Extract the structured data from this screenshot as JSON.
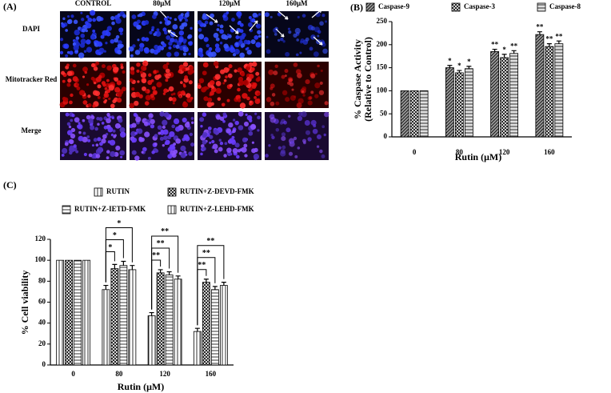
{
  "panel_a": {
    "panel_label": "(A)",
    "columns": [
      "CONTROL",
      "80μM",
      "120μM",
      "160μM"
    ],
    "rows": [
      "DAPI",
      "Mitotracker Red",
      "Merge"
    ]
  },
  "chart_data": [
    {
      "type": "bar",
      "panel_label": "(B)",
      "x_label": "Rutin (μM)",
      "y_label": [
        "% Caspase Activity",
        "(Relative to Control)"
      ],
      "categories": [
        "0",
        "80",
        "120",
        "160"
      ],
      "series": [
        {
          "name": "Caspase-9",
          "color": "#9a9a9a",
          "pattern": "diagonal",
          "values": [
            100,
            150,
            185,
            222
          ],
          "errors": [
            0,
            5,
            5,
            6
          ],
          "labels": [
            null,
            "*",
            "**",
            "**"
          ]
        },
        {
          "name": "Caspase-3",
          "color": "#ffffff",
          "pattern": "cross",
          "values": [
            100,
            139,
            172,
            196
          ],
          "errors": [
            0,
            5,
            7,
            6
          ],
          "labels": [
            null,
            "*",
            "*",
            "**"
          ]
        },
        {
          "name": "Caspase-8",
          "color": "#e0e0e0",
          "pattern": "horizontal",
          "values": [
            100,
            148,
            181,
            202
          ],
          "errors": [
            0,
            5,
            6,
            6
          ],
          "labels": [
            null,
            "*",
            "**",
            "**"
          ]
        }
      ],
      "ylim": [
        0,
        250
      ],
      "yticks": [
        0,
        50,
        100,
        150,
        200,
        250
      ]
    },
    {
      "type": "bar",
      "panel_label": "(C)",
      "x_label": "Rutin (μM)",
      "y_label": [
        "% Cell viability"
      ],
      "categories": [
        "0",
        "80",
        "120",
        "160"
      ],
      "series": [
        {
          "name": "RUTIN",
          "color": "#ffffff",
          "pattern": "vertical",
          "values": [
            100,
            72,
            47,
            32
          ],
          "errors": [
            0,
            4,
            3,
            3
          ]
        },
        {
          "name": "RUTIN+Z-DEVD-FMK",
          "color": "#ffffff",
          "pattern": "cross",
          "values": [
            100,
            92,
            88,
            79
          ],
          "errors": [
            0,
            4,
            3,
            3
          ],
          "labels": [
            null,
            "*",
            "**",
            "**"
          ]
        },
        {
          "name": "RUTIN+Z-IETD-FMK",
          "color": "#ffffff",
          "pattern": "horizontal",
          "values": [
            100,
            95,
            86,
            72
          ],
          "errors": [
            0,
            4,
            3,
            3
          ],
          "labels": [
            null,
            "*",
            "**",
            "**"
          ]
        },
        {
          "name": "RUTIN+Z-LEHD-FMK",
          "color": "#ffffff",
          "pattern": "vertical",
          "values": [
            100,
            91,
            82,
            76
          ],
          "errors": [
            0,
            4,
            3,
            3
          ],
          "labels": [
            null,
            "*",
            "**",
            "**"
          ]
        }
      ],
      "ylim": [
        0,
        120
      ],
      "yticks": [
        0,
        20,
        40,
        60,
        80,
        100,
        120
      ]
    }
  ]
}
